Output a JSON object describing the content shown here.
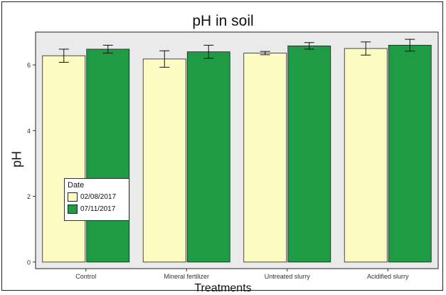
{
  "chart_data": {
    "type": "bar",
    "title": "pH in soil",
    "xlabel": "Treatments",
    "ylabel": "pH",
    "categories": [
      "Control",
      "Mineral fertilizer",
      "Untreated slurry",
      "Acidified slurry"
    ],
    "series": [
      {
        "name": "02/08/2017",
        "color": "#fcfbc2",
        "values": [
          6.28,
          6.18,
          6.36,
          6.5
        ],
        "errors": [
          0.2,
          0.25,
          0.05,
          0.2
        ]
      },
      {
        "name": "07/11/2017",
        "color": "#1f9a45",
        "values": [
          6.48,
          6.4,
          6.58,
          6.6
        ],
        "errors": [
          0.12,
          0.2,
          0.1,
          0.18
        ]
      }
    ],
    "ylim": [
      -0.2,
      7.0
    ],
    "yticks": [
      0,
      2,
      4,
      6
    ],
    "legend": {
      "title": "Date",
      "position": "bottom-left"
    },
    "grid": false,
    "panel_background": "#eaeaea"
  }
}
